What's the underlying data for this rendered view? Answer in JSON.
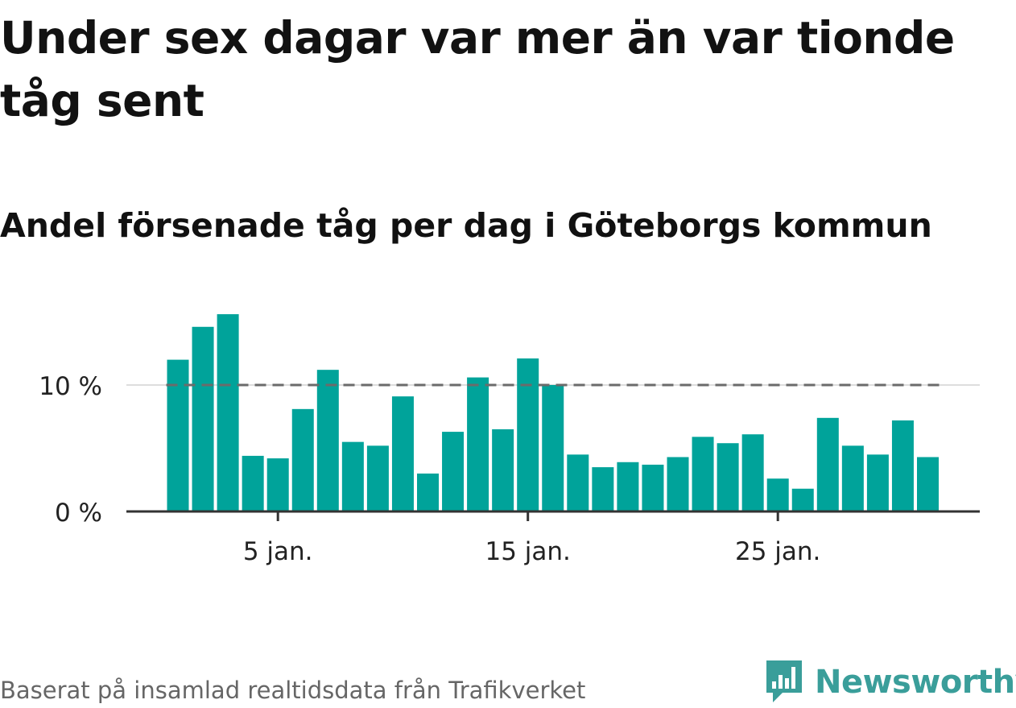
{
  "title": "Under sex dagar var mer än var tionde tåg sent",
  "subtitle": "Andel försenade tåg per dag i Göteborgs kommun",
  "footer": {
    "source": "Baserat på insamlad realtidsdata från Trafikverket"
  },
  "logo": {
    "text": "Newsworthy",
    "icon": "newsworthy-bar-chart-icon",
    "color": "#3a9e9a"
  },
  "colors": {
    "bar": "#00a39a",
    "reference_line": "#6b6b6b",
    "grid": "#dddddd",
    "axis": "#333333"
  },
  "chart_data": {
    "type": "bar",
    "x": [
      1,
      2,
      3,
      4,
      5,
      6,
      7,
      8,
      9,
      10,
      11,
      12,
      13,
      14,
      15,
      16,
      17,
      18,
      19,
      20,
      21,
      22,
      23,
      24,
      25,
      26,
      27,
      28,
      29,
      30,
      31
    ],
    "values": [
      12.0,
      14.6,
      15.6,
      4.4,
      4.2,
      8.1,
      11.2,
      5.5,
      5.2,
      9.1,
      3.0,
      6.3,
      10.6,
      6.5,
      12.1,
      10.0,
      4.5,
      3.5,
      3.9,
      3.7,
      4.3,
      5.9,
      5.4,
      6.1,
      2.6,
      1.8,
      7.4,
      5.2,
      4.5,
      7.2,
      4.3
    ],
    "xticks": [
      5,
      15,
      25
    ],
    "xtick_labels": [
      "5 jan.",
      "15 jan.",
      "25 jan."
    ],
    "yticks": [
      0,
      10
    ],
    "ytick_labels": [
      "0 %",
      "10 %"
    ],
    "ylim": [
      0,
      16
    ],
    "reference_line": {
      "y": 10,
      "style": "dashed"
    },
    "xlabel": "",
    "ylabel": "",
    "grid": true
  }
}
